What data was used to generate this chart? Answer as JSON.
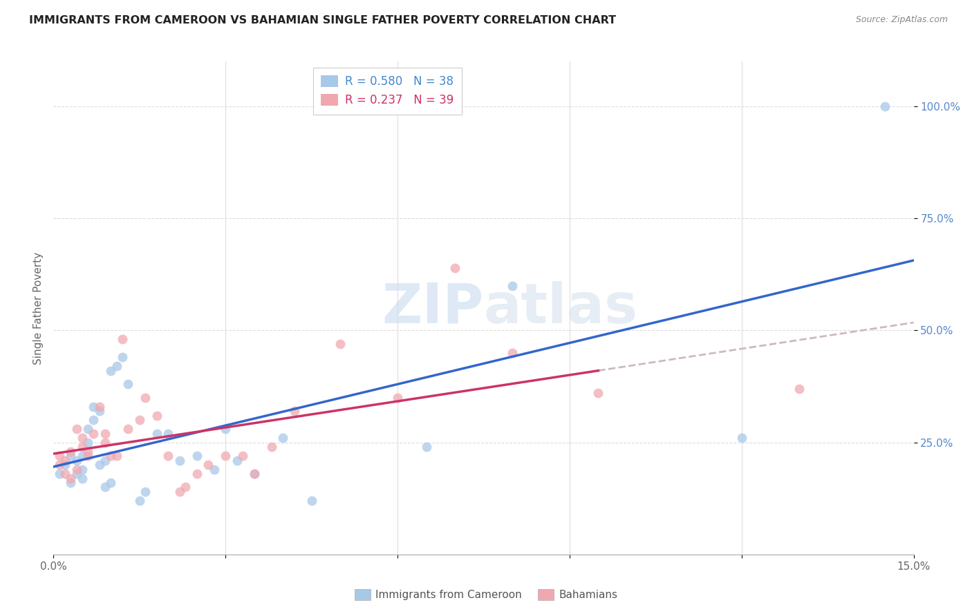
{
  "title": "IMMIGRANTS FROM CAMEROON VS BAHAMIAN SINGLE FATHER POVERTY CORRELATION CHART",
  "source": "Source: ZipAtlas.com",
  "ylabel": "Single Father Poverty",
  "xlim": [
    0.0,
    0.15
  ],
  "ylim": [
    0.0,
    1.1
  ],
  "blue_R": 0.58,
  "blue_N": 38,
  "pink_R": 0.237,
  "pink_N": 39,
  "blue_color": "#a8c8e8",
  "pink_color": "#f0a8b0",
  "blue_line_color": "#3366cc",
  "pink_line_color": "#cc3366",
  "dashed_line_color": "#ccbbbb",
  "watermark_zip": "ZIP",
  "watermark_atlas": "atlas",
  "title_color": "#222222",
  "source_color": "#888888",
  "ylabel_color": "#666666",
  "tick_color_x": "#666666",
  "tick_color_y": "#5588cc",
  "legend_text_blue": "#4488cc",
  "legend_text_pink": "#cc3366",
  "legend_label_blue": "Immigrants from Cameroon",
  "legend_label_pink": "Bahamians",
  "blue_scatter_x": [
    0.001,
    0.002,
    0.003,
    0.003,
    0.004,
    0.004,
    0.005,
    0.005,
    0.005,
    0.006,
    0.006,
    0.007,
    0.007,
    0.008,
    0.008,
    0.009,
    0.009,
    0.01,
    0.01,
    0.011,
    0.012,
    0.013,
    0.015,
    0.016,
    0.018,
    0.02,
    0.022,
    0.025,
    0.028,
    0.03,
    0.032,
    0.035,
    0.04,
    0.045,
    0.065,
    0.08,
    0.12,
    0.145
  ],
  "blue_scatter_y": [
    0.18,
    0.2,
    0.16,
    0.22,
    0.21,
    0.18,
    0.17,
    0.19,
    0.22,
    0.25,
    0.28,
    0.3,
    0.33,
    0.32,
    0.2,
    0.15,
    0.21,
    0.16,
    0.41,
    0.42,
    0.44,
    0.38,
    0.12,
    0.14,
    0.27,
    0.27,
    0.21,
    0.22,
    0.19,
    0.28,
    0.21,
    0.18,
    0.26,
    0.12,
    0.24,
    0.6,
    0.26,
    1.0
  ],
  "pink_scatter_x": [
    0.001,
    0.001,
    0.002,
    0.002,
    0.003,
    0.003,
    0.004,
    0.004,
    0.005,
    0.005,
    0.006,
    0.006,
    0.007,
    0.008,
    0.009,
    0.009,
    0.01,
    0.011,
    0.012,
    0.013,
    0.015,
    0.016,
    0.018,
    0.02,
    0.022,
    0.023,
    0.025,
    0.027,
    0.03,
    0.033,
    0.035,
    0.038,
    0.042,
    0.05,
    0.06,
    0.07,
    0.08,
    0.095,
    0.13
  ],
  "pink_scatter_y": [
    0.2,
    0.22,
    0.18,
    0.21,
    0.23,
    0.17,
    0.19,
    0.28,
    0.24,
    0.26,
    0.23,
    0.22,
    0.27,
    0.33,
    0.25,
    0.27,
    0.22,
    0.22,
    0.48,
    0.28,
    0.3,
    0.35,
    0.31,
    0.22,
    0.14,
    0.15,
    0.18,
    0.2,
    0.22,
    0.22,
    0.18,
    0.24,
    0.32,
    0.47,
    0.35,
    0.64,
    0.45,
    0.36,
    0.37
  ]
}
